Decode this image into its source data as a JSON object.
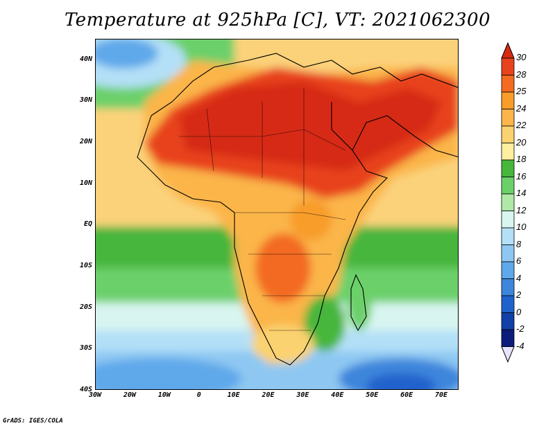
{
  "title": "Temperature at 925hPa [C], VT: 2021062300",
  "credit": "GrADS: IGES/COLA",
  "map": {
    "lat_ticks": [
      "40N",
      "30N",
      "20N",
      "10N",
      "EQ",
      "10S",
      "20S",
      "30S",
      "40S"
    ],
    "lon_ticks": [
      "30W",
      "20W",
      "10W",
      "0",
      "10E",
      "20E",
      "30E",
      "40E",
      "50E",
      "60E",
      "70E"
    ],
    "lat_range": [
      -40,
      45
    ],
    "lon_range": [
      -30,
      75
    ],
    "colorbar": {
      "levels": [
        "30",
        "28",
        "25",
        "24",
        "22",
        "20",
        "18",
        "16",
        "14",
        "12",
        "10",
        "8",
        "6",
        "4",
        "2",
        "0",
        "-2",
        "-4"
      ],
      "colors": [
        "#d62a12",
        "#e8431c",
        "#f36a20",
        "#f89c2a",
        "#fbb54a",
        "#fad270",
        "#fdeea0",
        "#46b63c",
        "#6cd06a",
        "#b0e8a8",
        "#d8f5f0",
        "#b4e0f7",
        "#8ec8f2",
        "#5fa8ea",
        "#3d86dc",
        "#2062cc",
        "#1040a8",
        "#0c1c7a",
        "#e7e4ff"
      ]
    }
  }
}
